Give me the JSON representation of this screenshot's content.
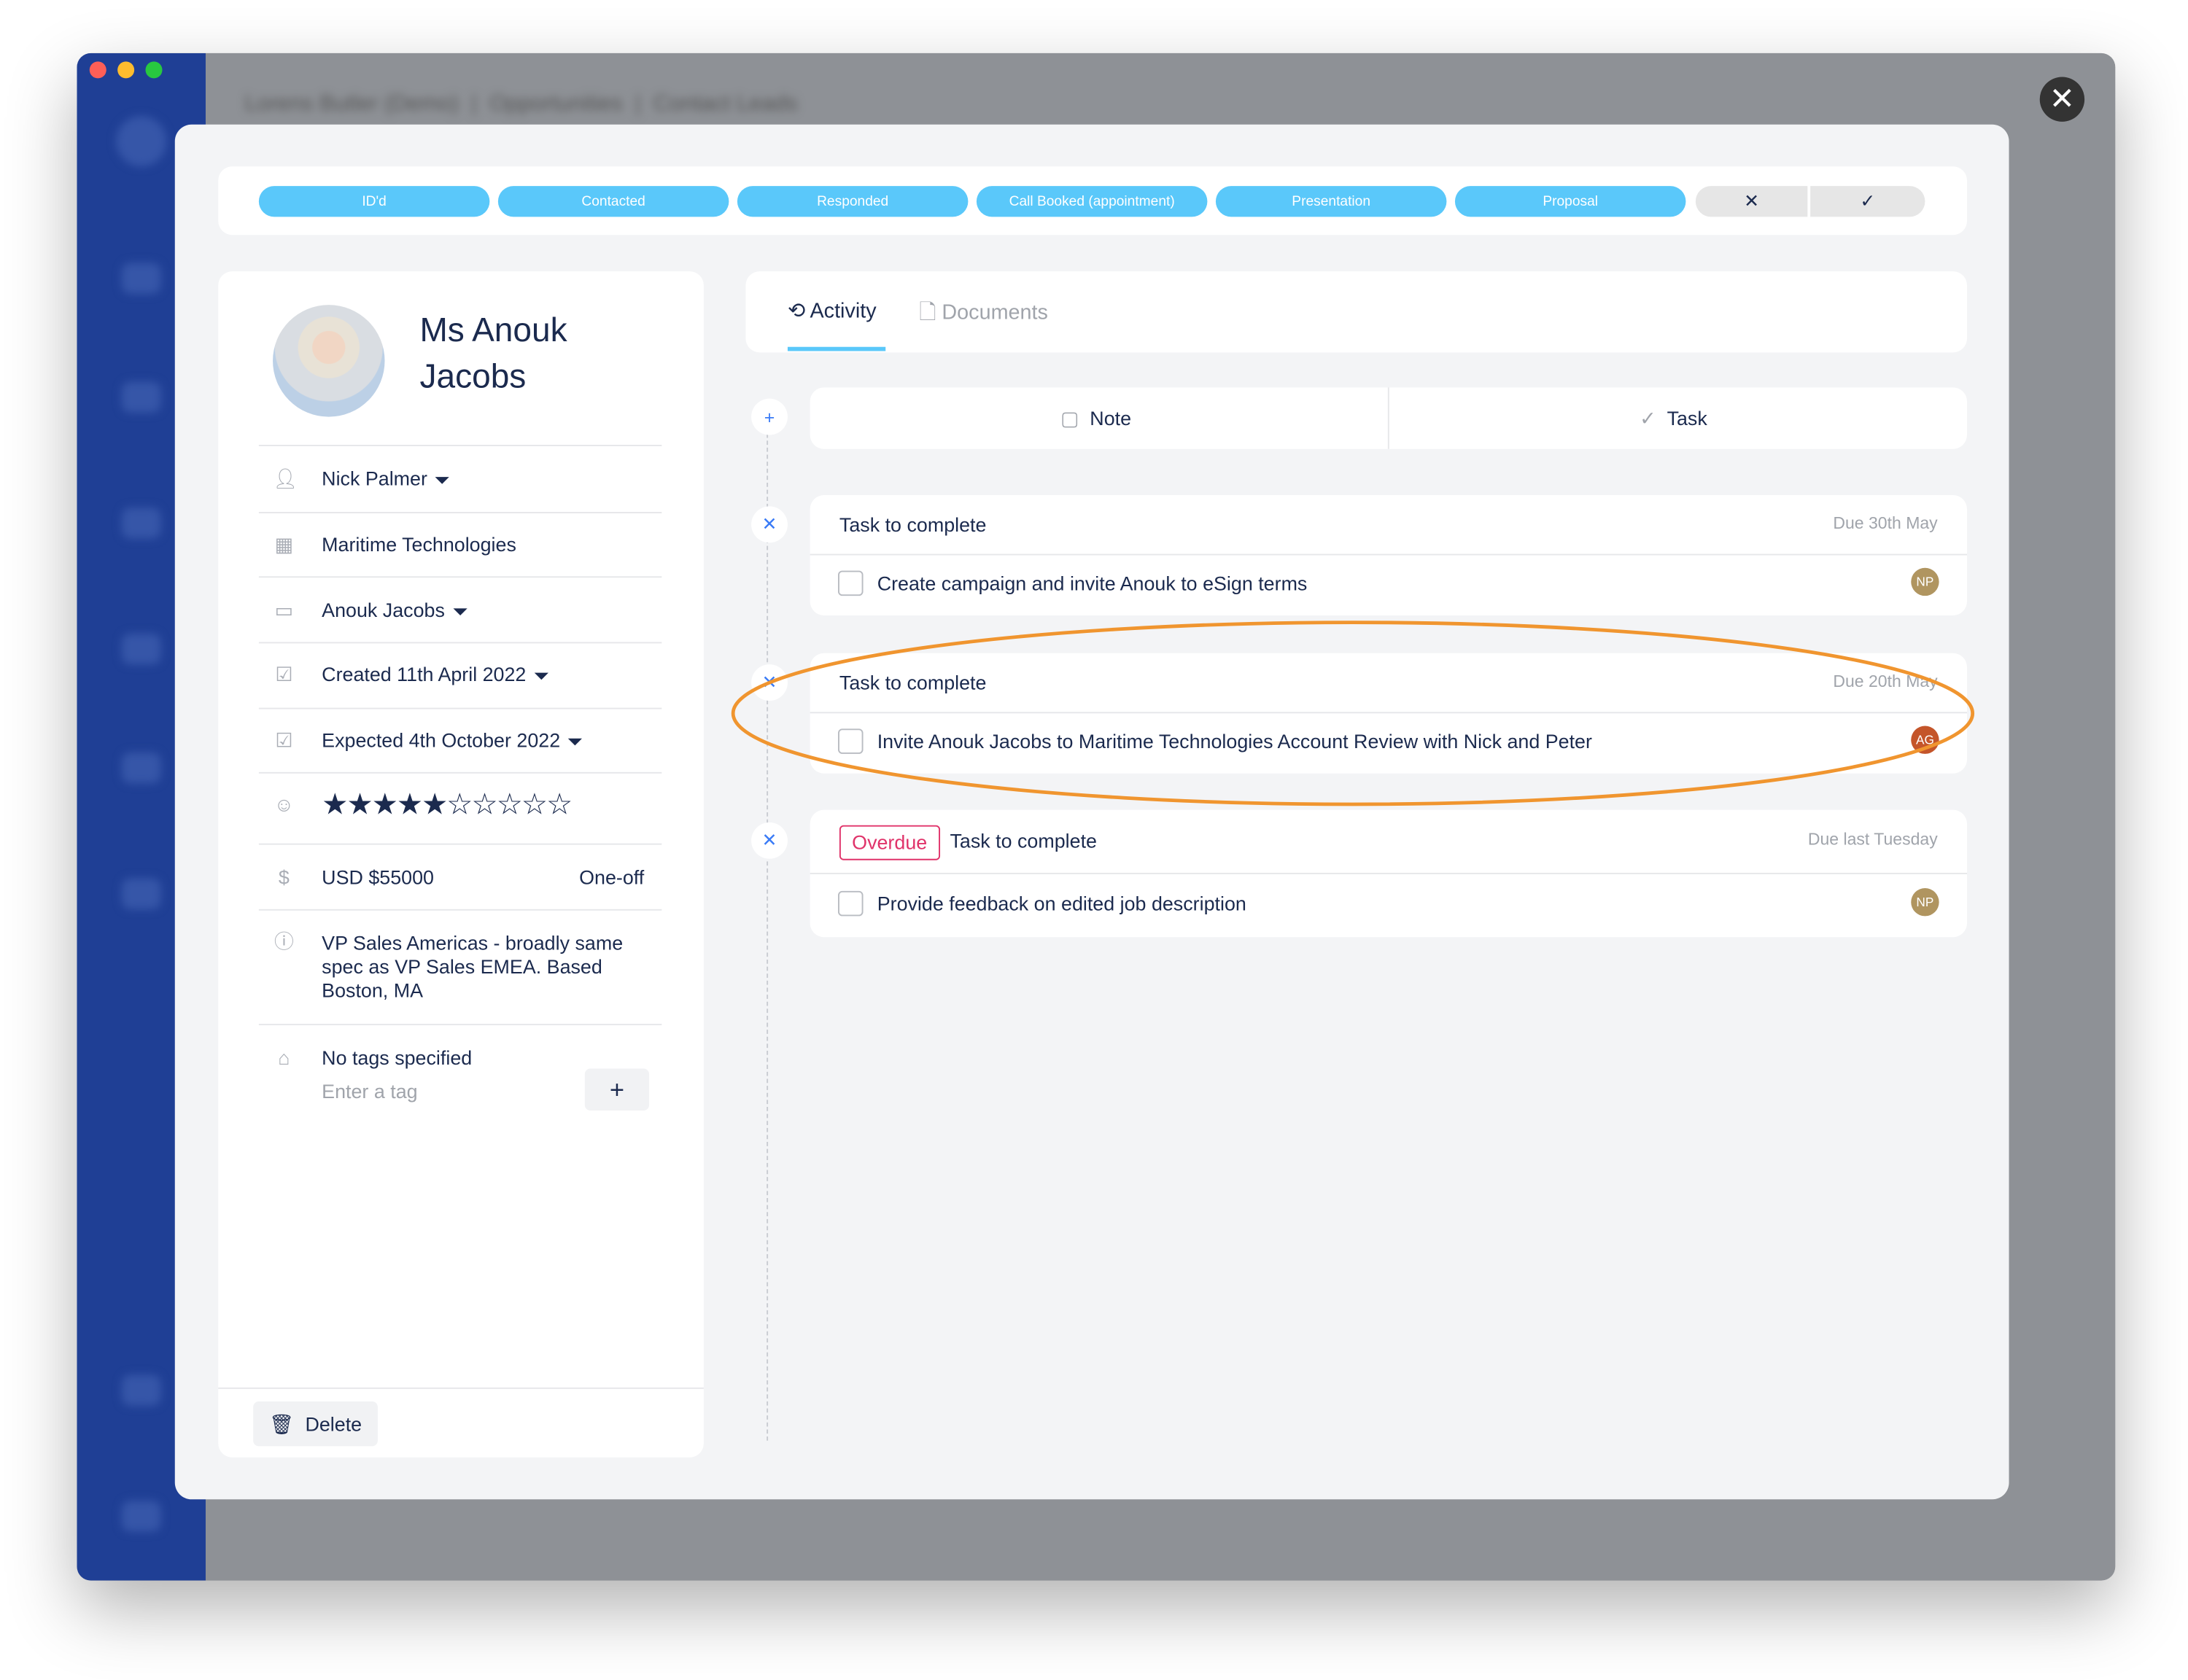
{
  "background_app": {
    "breadcrumb": [
      "Lorens Butler (Demo)",
      "Opportunities",
      "Contact Leads"
    ]
  },
  "pipeline": {
    "stages": [
      "ID'd",
      "Contacted",
      "Responded",
      "Call Booked (appointment)",
      "Presentation",
      "Proposal"
    ],
    "lost_label": "✕",
    "won_label": "✓",
    "accent": "#5ac8fa"
  },
  "contact": {
    "name_line1": "Ms Anouk",
    "name_line2": "Jacobs",
    "owner": "Nick Palmer",
    "company": "Maritime Technologies",
    "contact_person": "Anouk Jacobs",
    "created": "Created 11th April 2022",
    "expected": "Expected 4th October 2022",
    "rating": 5,
    "rating_max": 10,
    "value": "USD $55000",
    "value_type": "One-off",
    "description": "VP Sales Americas - broadly same spec as VP Sales EMEA. Based Boston, MA",
    "tags_empty": "No tags specified",
    "tag_placeholder": "Enter a tag",
    "add_tag": "+",
    "delete_label": "Delete"
  },
  "tabs": [
    {
      "label": "Activity",
      "active": true
    },
    {
      "label": "Documents",
      "active": false
    }
  ],
  "composer": {
    "note_label": "Note",
    "task_label": "Task"
  },
  "tasks": [
    {
      "header": "Task to complete",
      "due": "Due 30th May",
      "text": "Create campaign and invite Anouk to eSign terms",
      "assignee": "NP",
      "assignee_color": "#b09560",
      "overdue": false
    },
    {
      "header": "Task to complete",
      "due": "Due 20th May",
      "text": "Invite Anouk Jacobs to Maritime Technologies Account Review with Nick and Peter",
      "assignee": "AG",
      "assignee_color": "#c4552a",
      "overdue": false,
      "highlighted": true
    },
    {
      "header": "Task to complete",
      "due": "Due last Tuesday",
      "text": "Provide feedback on edited job description",
      "assignee": "NP",
      "assignee_color": "#b09560",
      "overdue": true,
      "overdue_label": "Overdue"
    }
  ],
  "highlight_color": "#f0952f"
}
